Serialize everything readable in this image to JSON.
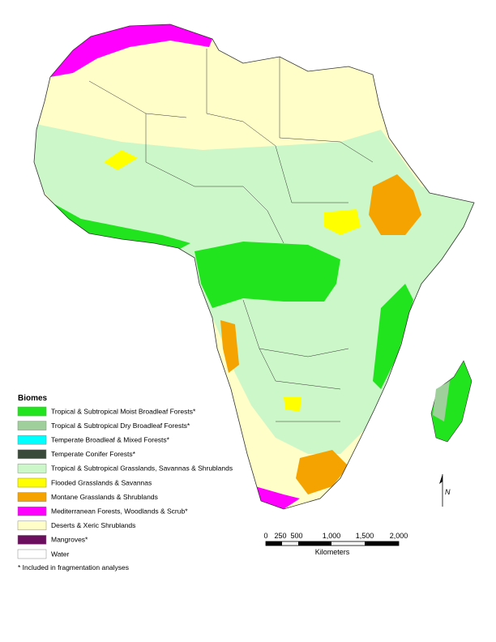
{
  "legend": {
    "title": "Biomes",
    "items": [
      {
        "label": "Tropical & Subtropical Moist Broadleaf Forests*",
        "color": "#22e41e"
      },
      {
        "label": "Tropical & Subtropical Dry Broadleaf Forests*",
        "color": "#9fcf9a"
      },
      {
        "label": "Temperate Broadleaf & Mixed Forests*",
        "color": "#00ffff"
      },
      {
        "label": "Temperate Conifer Forests*",
        "color": "#3a4a3a"
      },
      {
        "label": "Tropical & Subtropical Grasslands, Savannas & Shrublands",
        "color": "#ccf7c8"
      },
      {
        "label": "Flooded Grasslands & Savannas",
        "color": "#ffff00"
      },
      {
        "label": "Montane Grasslands & Shrublands",
        "color": "#f5a300"
      },
      {
        "label": "Mediterranean Forests, Woodlands & Scrub*",
        "color": "#ff00ff"
      },
      {
        "label": "Deserts & Xeric Shrublands",
        "color": "#fffec8"
      },
      {
        "label": "Mangroves*",
        "color": "#6b0f5e"
      },
      {
        "label": "Water",
        "color": "#ffffff"
      }
    ]
  },
  "footnote": "* Included in fragmentation analyses",
  "scale": {
    "labels": [
      "0",
      "250",
      "500",
      "1,000",
      "1,500",
      "2,000"
    ],
    "unit": "Kilometers"
  },
  "north": "N"
}
